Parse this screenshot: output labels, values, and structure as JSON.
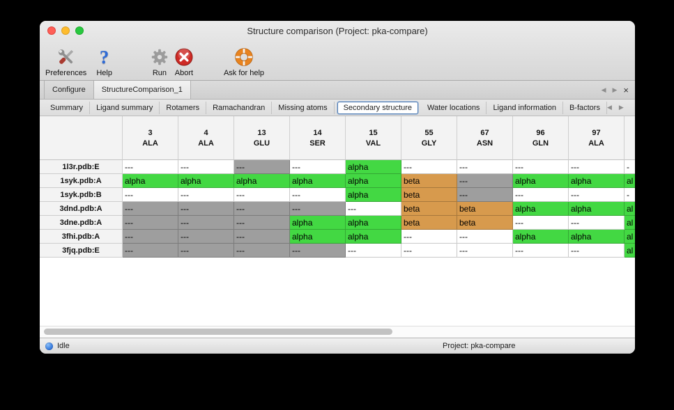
{
  "window": {
    "title": "Structure comparison (Project: pka-compare)"
  },
  "toolbar": {
    "buttons": [
      {
        "label": "Preferences",
        "icon": "tools-icon"
      },
      {
        "label": "Help",
        "icon": "help-question-icon"
      },
      {
        "label": "Run",
        "icon": "gear-icon"
      },
      {
        "label": "Abort",
        "icon": "abort-icon"
      },
      {
        "label": "Ask for help",
        "icon": "lifebuoy-icon"
      }
    ]
  },
  "document_tabs": {
    "tabs": [
      {
        "label": "Configure",
        "active": false
      },
      {
        "label": "StructureComparison_1",
        "active": true
      }
    ],
    "nav_left": "◀",
    "nav_right": "▶",
    "close": "×"
  },
  "view_tabs": {
    "tabs": [
      {
        "label": "Summary",
        "active": false
      },
      {
        "label": "Ligand summary",
        "active": false
      },
      {
        "label": "Rotamers",
        "active": false
      },
      {
        "label": "Ramachandran",
        "active": false
      },
      {
        "label": "Missing atoms",
        "active": false
      },
      {
        "label": "Secondary structure",
        "active": true
      },
      {
        "label": "Water locations",
        "active": false
      },
      {
        "label": "Ligand information",
        "active": false
      },
      {
        "label": "B-factors",
        "active": false
      }
    ],
    "nav_left": "◀",
    "nav_right": "▶"
  },
  "table": {
    "columns": [
      {
        "number": "3",
        "residue": "ALA"
      },
      {
        "number": "4",
        "residue": "ALA"
      },
      {
        "number": "13",
        "residue": "GLU"
      },
      {
        "number": "14",
        "residue": "SER"
      },
      {
        "number": "15",
        "residue": "VAL"
      },
      {
        "number": "55",
        "residue": "GLY"
      },
      {
        "number": "67",
        "residue": "ASN"
      },
      {
        "number": "96",
        "residue": "GLN"
      },
      {
        "number": "97",
        "residue": "ALA"
      },
      {
        "number": "",
        "residue": "",
        "partial": true
      }
    ],
    "rows": [
      {
        "label": "1l3r.pdb:E",
        "cells": [
          {
            "text": "---",
            "state": "none"
          },
          {
            "text": "---",
            "state": "none"
          },
          {
            "text": "---",
            "state": "missing"
          },
          {
            "text": "---",
            "state": "none"
          },
          {
            "text": "alpha",
            "state": "alpha"
          },
          {
            "text": "---",
            "state": "none"
          },
          {
            "text": "---",
            "state": "none"
          },
          {
            "text": "---",
            "state": "none"
          },
          {
            "text": "---",
            "state": "none"
          },
          {
            "text": "-",
            "state": "none"
          }
        ]
      },
      {
        "label": "1syk.pdb:A",
        "cells": [
          {
            "text": "alpha",
            "state": "alpha"
          },
          {
            "text": "alpha",
            "state": "alpha"
          },
          {
            "text": "alpha",
            "state": "alpha"
          },
          {
            "text": "alpha",
            "state": "alpha"
          },
          {
            "text": "alpha",
            "state": "alpha"
          },
          {
            "text": "beta",
            "state": "beta"
          },
          {
            "text": "---",
            "state": "missing"
          },
          {
            "text": "alpha",
            "state": "alpha"
          },
          {
            "text": "alpha",
            "state": "alpha"
          },
          {
            "text": "al",
            "state": "alpha"
          }
        ]
      },
      {
        "label": "1syk.pdb:B",
        "cells": [
          {
            "text": "---",
            "state": "none"
          },
          {
            "text": "---",
            "state": "none"
          },
          {
            "text": "---",
            "state": "none"
          },
          {
            "text": "---",
            "state": "none"
          },
          {
            "text": "alpha",
            "state": "alpha"
          },
          {
            "text": "beta",
            "state": "beta"
          },
          {
            "text": "---",
            "state": "missing"
          },
          {
            "text": "---",
            "state": "none"
          },
          {
            "text": "---",
            "state": "none"
          },
          {
            "text": "-",
            "state": "none"
          }
        ]
      },
      {
        "label": "3dnd.pdb:A",
        "cells": [
          {
            "text": "---",
            "state": "missing"
          },
          {
            "text": "---",
            "state": "missing"
          },
          {
            "text": "---",
            "state": "missing"
          },
          {
            "text": "---",
            "state": "missing"
          },
          {
            "text": "---",
            "state": "none"
          },
          {
            "text": "beta",
            "state": "beta"
          },
          {
            "text": "beta",
            "state": "beta"
          },
          {
            "text": "alpha",
            "state": "alpha"
          },
          {
            "text": "alpha",
            "state": "alpha"
          },
          {
            "text": "al",
            "state": "alpha"
          }
        ]
      },
      {
        "label": "3dne.pdb:A",
        "cells": [
          {
            "text": "---",
            "state": "missing"
          },
          {
            "text": "---",
            "state": "missing"
          },
          {
            "text": "---",
            "state": "missing"
          },
          {
            "text": "alpha",
            "state": "alpha"
          },
          {
            "text": "alpha",
            "state": "alpha"
          },
          {
            "text": "beta",
            "state": "beta"
          },
          {
            "text": "beta",
            "state": "beta"
          },
          {
            "text": "---",
            "state": "none"
          },
          {
            "text": "---",
            "state": "none"
          },
          {
            "text": "al",
            "state": "alpha"
          }
        ]
      },
      {
        "label": "3fhi.pdb:A",
        "cells": [
          {
            "text": "---",
            "state": "missing"
          },
          {
            "text": "---",
            "state": "missing"
          },
          {
            "text": "---",
            "state": "missing"
          },
          {
            "text": "alpha",
            "state": "alpha"
          },
          {
            "text": "alpha",
            "state": "alpha"
          },
          {
            "text": "---",
            "state": "none"
          },
          {
            "text": "---",
            "state": "none"
          },
          {
            "text": "alpha",
            "state": "alpha"
          },
          {
            "text": "alpha",
            "state": "alpha"
          },
          {
            "text": "al",
            "state": "alpha"
          }
        ]
      },
      {
        "label": "3fjq.pdb:E",
        "cells": [
          {
            "text": "---",
            "state": "missing"
          },
          {
            "text": "---",
            "state": "missing"
          },
          {
            "text": "---",
            "state": "missing"
          },
          {
            "text": "---",
            "state": "missing"
          },
          {
            "text": "---",
            "state": "none"
          },
          {
            "text": "---",
            "state": "none"
          },
          {
            "text": "---",
            "state": "none"
          },
          {
            "text": "---",
            "state": "none"
          },
          {
            "text": "---",
            "state": "none"
          },
          {
            "text": "al",
            "state": "alpha"
          }
        ]
      }
    ]
  },
  "statusbar": {
    "status": "Idle",
    "project": "Project: pka-compare"
  },
  "colors": {
    "alpha_green": "#43d843",
    "beta_orange": "#d79a4d",
    "missing_gray": "#9e9e9e",
    "selected_tab_border": "#4f7cb4"
  }
}
